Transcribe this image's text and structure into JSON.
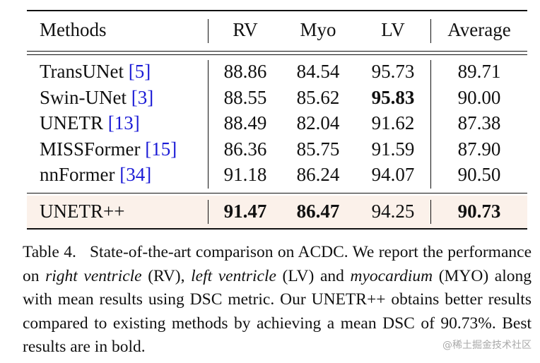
{
  "table": {
    "headers": [
      "Methods",
      "RV",
      "Myo",
      "LV",
      "Average"
    ],
    "rows": [
      {
        "method": "TransUNet ",
        "cite": "[5]",
        "rv": "88.86",
        "myo": "84.54",
        "lv": "95.73",
        "avg": "89.71"
      },
      {
        "method": "Swin-UNet ",
        "cite": "[3]",
        "rv": "88.55",
        "myo": "85.62",
        "lv": "95.83",
        "avg": "90.00"
      },
      {
        "method": "UNETR ",
        "cite": "[13]",
        "rv": "88.49",
        "myo": "82.04",
        "lv": "91.62",
        "avg": "87.38"
      },
      {
        "method": "MISSFormer ",
        "cite": "[15]",
        "rv": "86.36",
        "myo": "85.75",
        "lv": "91.59",
        "avg": "87.90"
      },
      {
        "method": "nnFormer ",
        "cite": "[34]",
        "rv": "91.18",
        "myo": "86.24",
        "lv": "94.07",
        "avg": "90.50"
      }
    ],
    "final_row": {
      "method": "UNETR++",
      "rv": "91.47",
      "myo": "86.47",
      "lv": "94.25",
      "avg": "90.73"
    },
    "highlight_color": "#fbf1ea",
    "citation_color": "#1a1ad6"
  },
  "caption": {
    "label": "Table 4.",
    "p1": "State-of-the-art comparison on ACDC. We report the performance on ",
    "rv_term": "right ventricle",
    "p2": " (RV), ",
    "lv_term": "left ventricle",
    "p3": " (LV) and ",
    "myo_term": "myocardium",
    "p4": " (MYO) along with mean results using DSC metric. Our UNETR++ obtains better results compared to existing methods by achieving a mean DSC of 90.73%. Best results are in bold."
  },
  "watermark": "@稀土掘金技术社区"
}
